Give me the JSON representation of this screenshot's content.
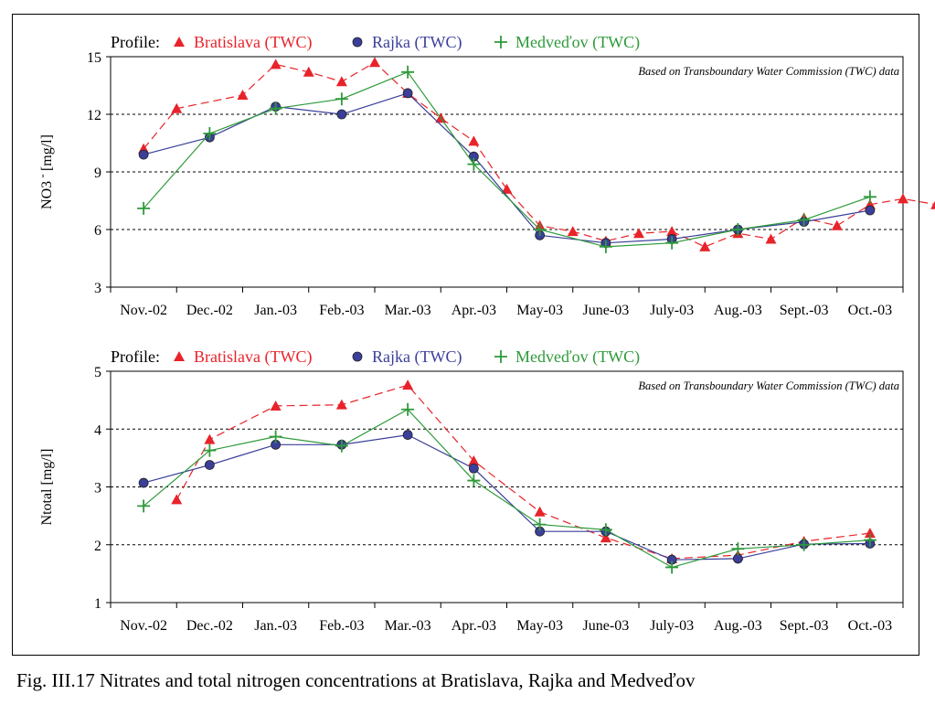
{
  "caption": "Fig. III.17  Nitrates and total nitrogen concentrations at Bratislava, Rajka and Medveďov",
  "colors": {
    "bratislava": "#e8232a",
    "rajka": "#3b3f9a",
    "medvedov": "#2e9a3a"
  },
  "chart_data": [
    {
      "type": "line",
      "legend_prefix": "Profile:",
      "annotation": "Based on Transboundary Water Commission (TWC) data",
      "ylabel": "NO3⁻ [mg/l]",
      "ylabel_base": "NO3",
      "ylabel_sup": "-",
      "ylabel_unit": "[mg/l]",
      "xlabels": [
        "Nov.-02",
        "Dec.-02",
        "Jan.-03",
        "Feb.-03",
        "Mar.-03",
        "Apr.-03",
        "May-03",
        "June-03",
        "July-03",
        "Aug.-03",
        "Sept.-03",
        "Oct.-03"
      ],
      "ylim": [
        3,
        15
      ],
      "yticks": [
        3,
        6,
        9,
        12,
        15
      ],
      "grid": "dashed horizontal",
      "legend_position": "top",
      "series": [
        {
          "name": "Bratislava (TWC)",
          "key": "bratislava",
          "marker": "triangle",
          "dash": true,
          "points": [
            [
              0.5,
              10.2
            ],
            [
              1,
              12.3
            ],
            [
              2,
              13.0
            ],
            [
              2.5,
              14.6
            ],
            [
              3,
              14.2
            ],
            [
              3.5,
              13.7
            ],
            [
              4,
              14.7
            ],
            [
              4.5,
              13.1
            ],
            [
              5,
              11.8
            ],
            [
              5.5,
              10.6
            ],
            [
              6,
              8.1
            ],
            [
              6.5,
              6.2
            ],
            [
              7,
              5.9
            ],
            [
              7.5,
              5.4
            ],
            [
              8,
              5.8
            ],
            [
              8.5,
              5.9
            ],
            [
              9,
              5.1
            ],
            [
              9.5,
              5.8
            ],
            [
              10,
              5.5
            ],
            [
              10.5,
              6.6
            ],
            [
              11,
              6.2
            ],
            [
              11.5,
              7.3
            ],
            [
              12,
              7.6
            ],
            [
              12.5,
              7.3
            ]
          ]
        },
        {
          "name": "Rajka (TWC)",
          "key": "rajka",
          "marker": "circle",
          "dash": false,
          "points": [
            [
              0.5,
              9.9
            ],
            [
              1.5,
              10.8
            ],
            [
              2.5,
              12.4
            ],
            [
              3.5,
              12.0
            ],
            [
              4.5,
              13.1
            ],
            [
              5.5,
              9.8
            ],
            [
              6.5,
              5.7
            ],
            [
              7.5,
              5.3
            ],
            [
              8.5,
              5.5
            ],
            [
              9.5,
              6.0
            ],
            [
              10.5,
              6.4
            ],
            [
              11.5,
              7.0
            ]
          ]
        },
        {
          "name": "Medveďov (TWC)",
          "key": "medvedov",
          "marker": "plus",
          "dash": false,
          "points": [
            [
              0.5,
              7.1
            ],
            [
              1.5,
              11.0
            ],
            [
              2.5,
              12.3
            ],
            [
              3.5,
              12.8
            ],
            [
              4.5,
              14.2
            ],
            [
              5.5,
              9.4
            ],
            [
              6.5,
              6.0
            ],
            [
              7.5,
              5.1
            ],
            [
              8.5,
              5.3
            ],
            [
              9.5,
              6.0
            ],
            [
              10.5,
              6.5
            ],
            [
              11.5,
              7.7
            ]
          ]
        }
      ]
    },
    {
      "type": "line",
      "legend_prefix": "Profile:",
      "annotation": "Based on Transboundary Water Commission (TWC) data",
      "ylabel": "Ntotal [mg/l]",
      "xlabels": [
        "Nov.-02",
        "Dec.-02",
        "Jan.-03",
        "Feb.-03",
        "Mar.-03",
        "Apr.-03",
        "May-03",
        "June-03",
        "July-03",
        "Aug.-03",
        "Sept.-03",
        "Oct.-03"
      ],
      "ylim": [
        1,
        5
      ],
      "yticks": [
        1,
        2,
        3,
        4,
        5
      ],
      "grid": "dashed horizontal",
      "legend_position": "top",
      "series": [
        {
          "name": "Bratislava (TWC)",
          "key": "bratislava",
          "marker": "triangle",
          "dash": true,
          "points": [
            [
              1,
              2.78
            ],
            [
              1.5,
              3.82
            ],
            [
              2.5,
              4.4
            ],
            [
              3.5,
              4.42
            ],
            [
              4.5,
              4.76
            ],
            [
              5.5,
              3.45
            ],
            [
              6.5,
              2.57
            ],
            [
              7.5,
              2.12
            ],
            [
              8.5,
              1.76
            ],
            [
              9.5,
              1.82
            ],
            [
              10.5,
              2.06
            ],
            [
              11.5,
              2.2
            ]
          ]
        },
        {
          "name": "Rajka (TWC)",
          "key": "rajka",
          "marker": "circle",
          "dash": false,
          "points": [
            [
              0.5,
              3.07
            ],
            [
              1.5,
              3.38
            ],
            [
              2.5,
              3.73
            ],
            [
              3.5,
              3.73
            ],
            [
              4.5,
              3.9
            ],
            [
              5.5,
              3.32
            ],
            [
              6.5,
              2.23
            ],
            [
              7.5,
              2.23
            ],
            [
              8.5,
              1.74
            ],
            [
              9.5,
              1.76
            ],
            [
              10.5,
              2.01
            ],
            [
              11.5,
              2.02
            ]
          ]
        },
        {
          "name": "Medveďov (TWC)",
          "key": "medvedov",
          "marker": "plus",
          "dash": false,
          "points": [
            [
              0.5,
              2.67
            ],
            [
              1.5,
              3.63
            ],
            [
              2.5,
              3.87
            ],
            [
              3.5,
              3.71
            ],
            [
              4.5,
              4.34
            ],
            [
              5.5,
              3.11
            ],
            [
              6.5,
              2.35
            ],
            [
              7.5,
              2.26
            ],
            [
              8.5,
              1.61
            ],
            [
              9.5,
              1.93
            ],
            [
              10.5,
              2.0
            ],
            [
              11.5,
              2.08
            ]
          ]
        }
      ]
    }
  ]
}
